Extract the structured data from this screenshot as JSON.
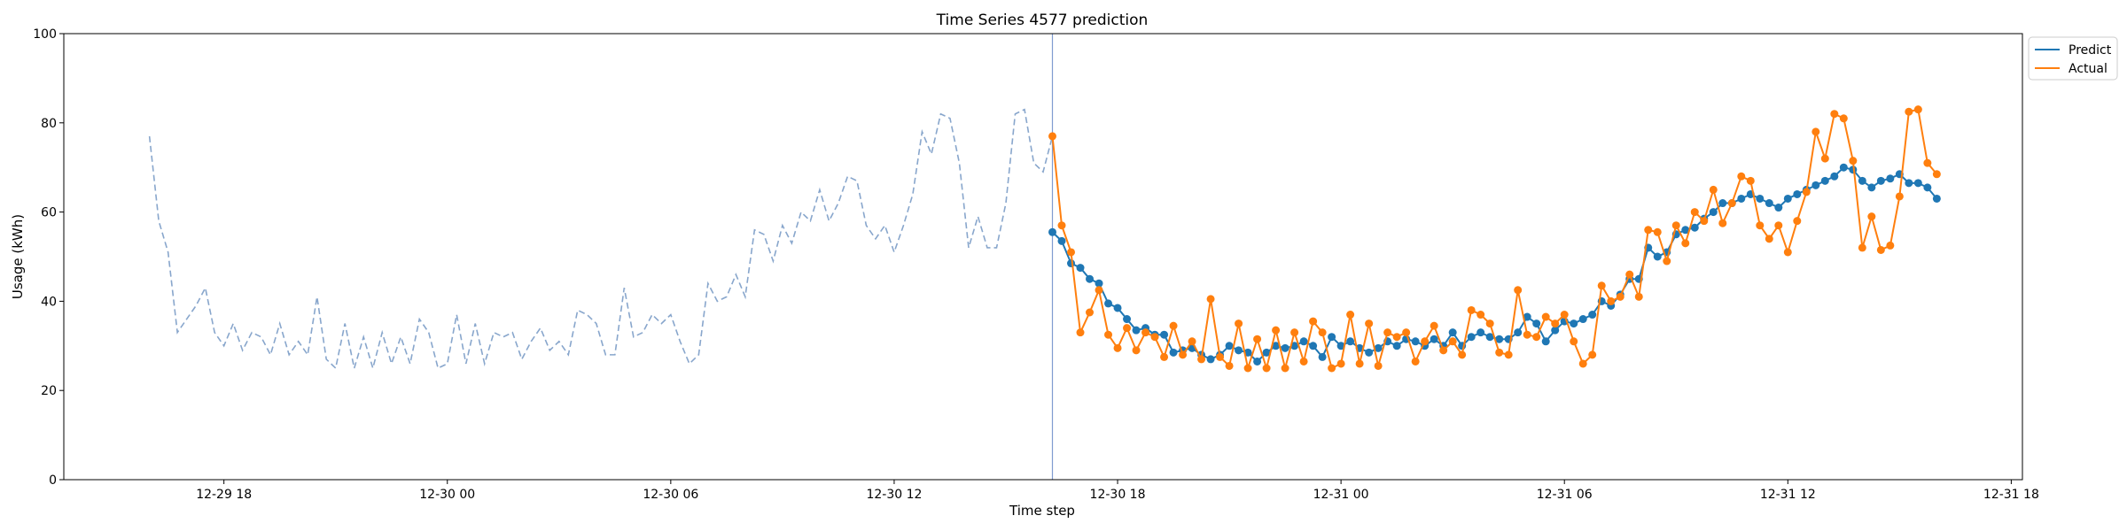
{
  "chart_data": {
    "type": "line",
    "title": "Time Series 4577 prediction",
    "xlabel": "Time step",
    "ylabel": "Usage (kWh)",
    "x_unit": "hour",
    "xlim": [
      "12-29 13:42",
      "12-31 18:18"
    ],
    "ylim": [
      0,
      100
    ],
    "x_ticks": [
      {
        "value": "12-29 18:00",
        "label": "12-29 18"
      },
      {
        "value": "12-30 00:00",
        "label": "12-30 00"
      },
      {
        "value": "12-30 06:00",
        "label": "12-30 06"
      },
      {
        "value": "12-30 12:00",
        "label": "12-30 12"
      },
      {
        "value": "12-30 18:00",
        "label": "12-30 18"
      },
      {
        "value": "12-31 00:00",
        "label": "12-31 00"
      },
      {
        "value": "12-31 06:00",
        "label": "12-31 06"
      },
      {
        "value": "12-31 12:00",
        "label": "12-31 12"
      },
      {
        "value": "12-31 18:00",
        "label": "12-31 18"
      }
    ],
    "y_ticks": [
      0,
      20,
      40,
      60,
      80,
      100
    ],
    "grid": false,
    "legend_position": "outside-top-right",
    "forecast_start": "12-30 16:15",
    "history": {
      "start": "12-29 16:00",
      "step_minutes": 15,
      "style": "dashed",
      "color": "#88a6cc",
      "values": [
        77,
        58,
        51,
        33,
        36,
        39,
        43,
        33,
        30,
        35,
        29,
        33,
        32,
        28,
        35,
        28,
        31,
        28,
        41,
        27,
        25,
        35,
        25,
        32,
        25,
        33,
        26,
        32,
        26,
        36,
        33,
        25,
        26,
        37,
        26,
        35,
        26,
        33,
        32,
        33,
        27,
        31,
        34,
        29,
        31,
        28,
        38,
        37,
        35,
        28,
        28,
        43,
        32,
        33,
        37,
        35,
        37,
        31,
        26,
        28,
        44,
        40,
        41,
        46,
        41,
        56,
        55,
        49,
        57,
        53,
        60,
        58,
        65,
        58,
        62,
        68,
        67,
        57,
        54,
        57,
        51,
        57,
        64,
        78,
        73,
        82,
        81,
        71,
        52,
        59,
        52,
        52,
        62,
        82,
        83,
        71,
        69,
        77
      ]
    },
    "forecast": {
      "start": "12-30 16:15",
      "step_minutes": 15,
      "series": [
        {
          "name": "Predict",
          "color": "#1f77b4",
          "values": [
            55.5,
            53.5,
            48.5,
            47.5,
            45,
            44,
            39.5,
            38.5,
            36,
            33.5,
            34,
            32.5,
            32.5,
            28.5,
            29,
            29.5,
            28,
            27,
            28,
            30,
            29,
            28.5,
            26.5,
            28.5,
            30,
            29.5,
            30,
            31,
            30,
            27.5,
            32,
            30,
            31,
            29.5,
            28.5,
            29.5,
            31,
            30,
            31.5,
            31,
            30,
            31.5,
            30,
            33,
            30,
            32,
            33,
            32,
            31.5,
            31.5,
            33,
            36.5,
            35,
            31,
            33.5,
            35.5,
            35,
            36,
            37,
            40,
            39,
            41.5,
            45,
            45,
            52,
            50,
            51,
            55,
            56,
            56.5,
            58.5,
            60,
            62,
            62,
            63,
            64,
            63,
            62,
            61,
            63,
            64,
            65,
            66,
            67,
            68,
            70,
            69.5,
            67,
            65.5,
            67,
            67.5,
            68.5,
            66.5,
            66.5,
            65.5,
            63
          ]
        },
        {
          "name": "Actual",
          "color": "#ff7f0e",
          "values": [
            77,
            57,
            51,
            33,
            37.5,
            42.5,
            32.5,
            29.5,
            34,
            29,
            33,
            32,
            27.5,
            34.5,
            28,
            31,
            27,
            40.5,
            27.5,
            25.5,
            35,
            25,
            31.5,
            25,
            33.5,
            25,
            33,
            26.5,
            35.5,
            33,
            25,
            26,
            37,
            26,
            35,
            25.5,
            33,
            32,
            33,
            26.5,
            31,
            34.5,
            29,
            31,
            28,
            38,
            37,
            35,
            28.5,
            28,
            42.5,
            32.5,
            32,
            36.5,
            35,
            37,
            31,
            26,
            28,
            43.5,
            40,
            41,
            46,
            41,
            56,
            55.5,
            49,
            57,
            53,
            60,
            58,
            65,
            57.5,
            62,
            68,
            67,
            57,
            54,
            57,
            51,
            58,
            64.5,
            78,
            72,
            82,
            81,
            71.5,
            52,
            59,
            51.5,
            52.5,
            63.5,
            82.5,
            83,
            71,
            68.5
          ]
        }
      ]
    }
  }
}
